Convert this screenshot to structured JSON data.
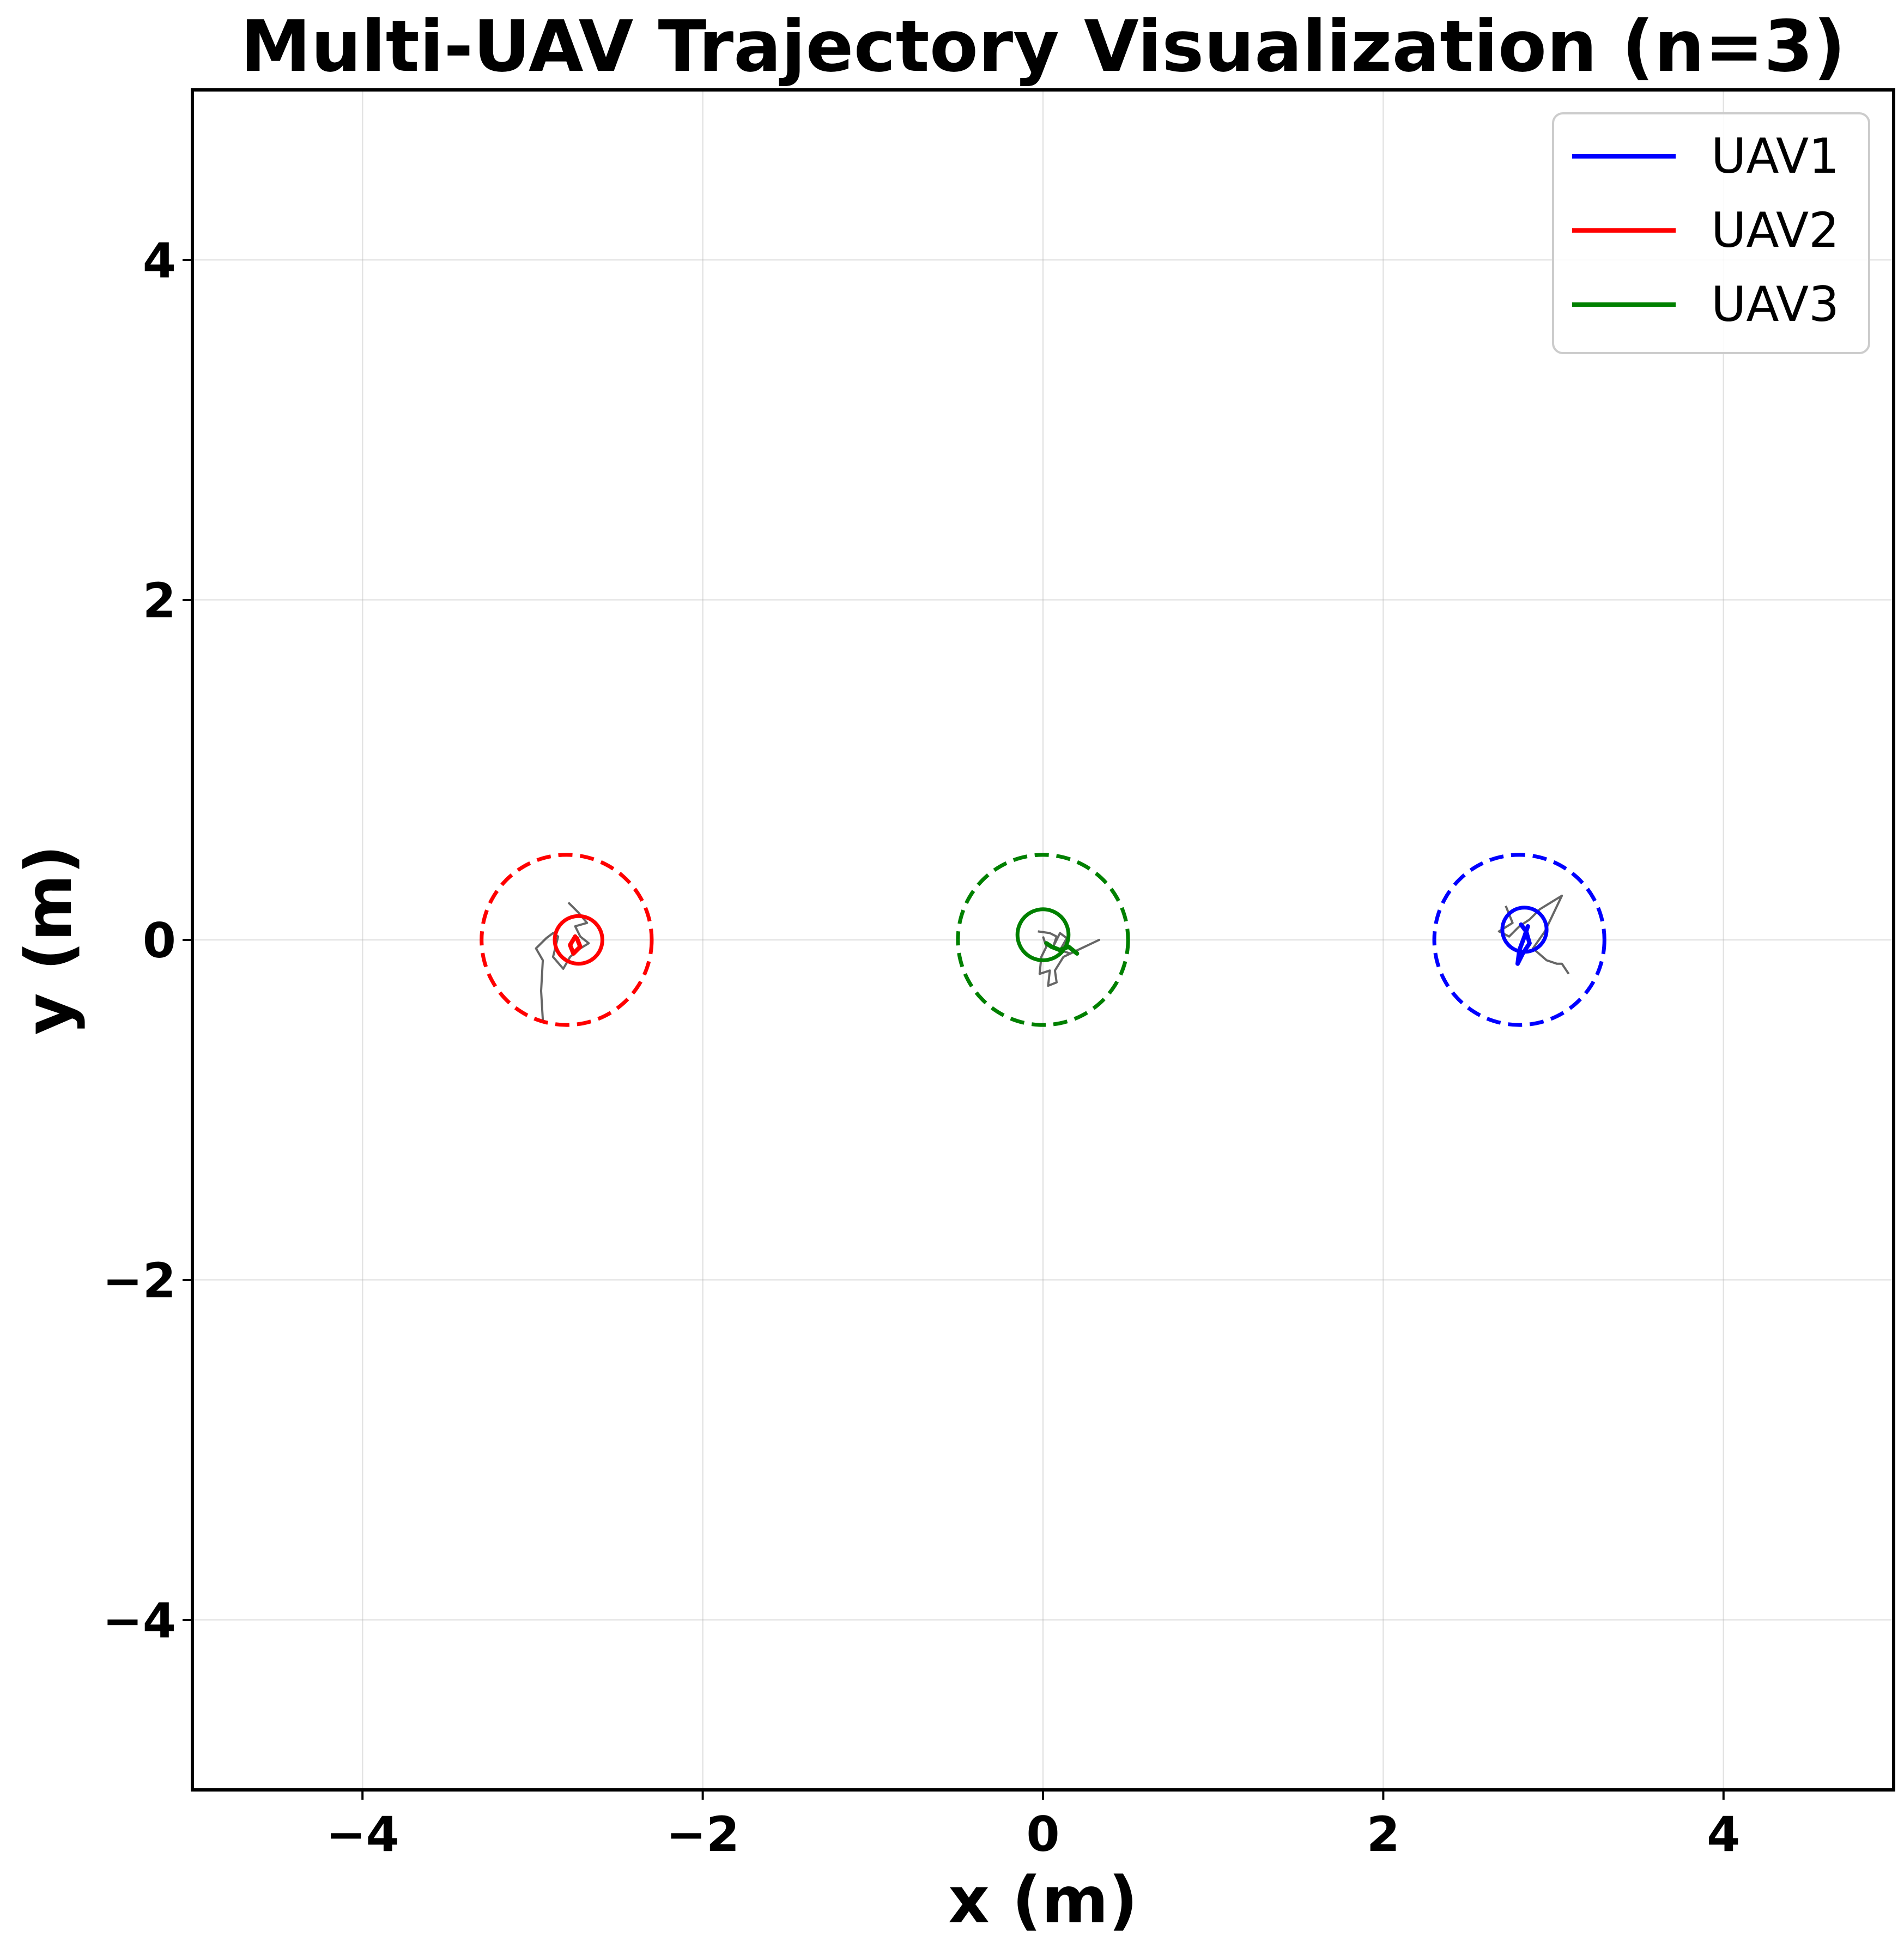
{
  "chart_data": {
    "type": "line",
    "title": "Multi-UAV Trajectory Visualization (n=3)",
    "xlabel": "x (m)",
    "ylabel": "y (m)",
    "xlim": [
      -5,
      5
    ],
    "ylim": [
      -5,
      5
    ],
    "xticks": [
      -4,
      -2,
      0,
      2,
      4
    ],
    "yticks": [
      -4,
      -2,
      0,
      2,
      4
    ],
    "xtick_labels": [
      "−4",
      "−2",
      "0",
      "2",
      "4"
    ],
    "ytick_labels": [
      "−4",
      "−2",
      "0",
      "2",
      "4"
    ],
    "grid": true,
    "legend_placement": "top-right",
    "series": [
      {
        "name": "UAV1",
        "color": "#0000ff",
        "target_center": [
          2.8,
          0.0
        ],
        "target_radius": 0.5,
        "current_position": [
          2.83,
          0.06
        ],
        "marker_radius": 0.13,
        "trajectory": [
          [
            2.85,
            0.08
          ],
          [
            2.83,
            0.02
          ],
          [
            2.8,
            -0.06
          ],
          [
            2.79,
            -0.14
          ],
          [
            2.82,
            -0.08
          ],
          [
            2.86,
            -0.02
          ],
          [
            2.84,
            0.05
          ],
          [
            2.81,
            0.09
          ]
        ],
        "noise_path": [
          [
            2.72,
            0.2
          ],
          [
            2.76,
            0.1
          ],
          [
            2.68,
            0.05
          ],
          [
            2.74,
            0.02
          ],
          [
            2.8,
            0.08
          ],
          [
            2.86,
            0.12
          ],
          [
            2.92,
            0.18
          ],
          [
            3.05,
            0.26
          ],
          [
            2.95,
            0.05
          ],
          [
            2.88,
            -0.05
          ],
          [
            2.96,
            -0.12
          ],
          [
            3.02,
            -0.14
          ],
          [
            3.05,
            -0.14
          ],
          [
            3.09,
            -0.2
          ]
        ]
      },
      {
        "name": "UAV2",
        "color": "#ff0000",
        "target_center": [
          -2.8,
          0.0
        ],
        "target_radius": 0.5,
        "current_position": [
          -2.73,
          0.0
        ],
        "marker_radius": 0.14,
        "trajectory": [
          [
            -2.75,
            0.02
          ],
          [
            -2.78,
            -0.03
          ],
          [
            -2.76,
            -0.08
          ],
          [
            -2.72,
            -0.04
          ],
          [
            -2.74,
            0.01
          ]
        ],
        "noise_path": [
          [
            -2.94,
            -0.47
          ],
          [
            -2.95,
            -0.3
          ],
          [
            -2.94,
            -0.12
          ],
          [
            -2.98,
            -0.05
          ],
          [
            -2.92,
            0.01
          ],
          [
            -2.88,
            0.04
          ],
          [
            -2.85,
            0.02
          ],
          [
            -2.88,
            -0.1
          ],
          [
            -2.82,
            -0.17
          ],
          [
            -2.78,
            -0.1
          ],
          [
            -2.72,
            -0.05
          ],
          [
            -2.67,
            -0.02
          ],
          [
            -2.72,
            0.02
          ],
          [
            -2.75,
            0.08
          ],
          [
            -2.68,
            0.1
          ],
          [
            -2.73,
            0.16
          ],
          [
            -2.79,
            0.22
          ]
        ]
      },
      {
        "name": "UAV3",
        "color": "#008000",
        "target_center": [
          0.0,
          0.0
        ],
        "target_radius": 0.5,
        "current_position": [
          0.0,
          0.03
        ],
        "marker_radius": 0.15,
        "trajectory": [
          [
            0.02,
            -0.02
          ],
          [
            0.05,
            -0.04
          ],
          [
            0.1,
            -0.06
          ],
          [
            0.15,
            -0.04
          ],
          [
            0.2,
            -0.08
          ]
        ],
        "noise_path": [
          [
            -0.03,
            0.05
          ],
          [
            0.04,
            0.04
          ],
          [
            0.08,
            0.02
          ],
          [
            0.06,
            -0.04
          ],
          [
            0.1,
            0.04
          ],
          [
            0.14,
            0.01
          ],
          [
            0.1,
            -0.06
          ],
          [
            0.16,
            -0.08
          ],
          [
            0.33,
            0.0
          ],
          [
            0.12,
            -0.1
          ],
          [
            0.07,
            -0.18
          ],
          [
            0.08,
            -0.25
          ],
          [
            0.03,
            -0.27
          ],
          [
            0.04,
            -0.18
          ],
          [
            -0.02,
            -0.2
          ],
          [
            -0.01,
            -0.1
          ],
          [
            0.02,
            -0.04
          ],
          [
            0.0,
            0.02
          ]
        ]
      }
    ]
  }
}
